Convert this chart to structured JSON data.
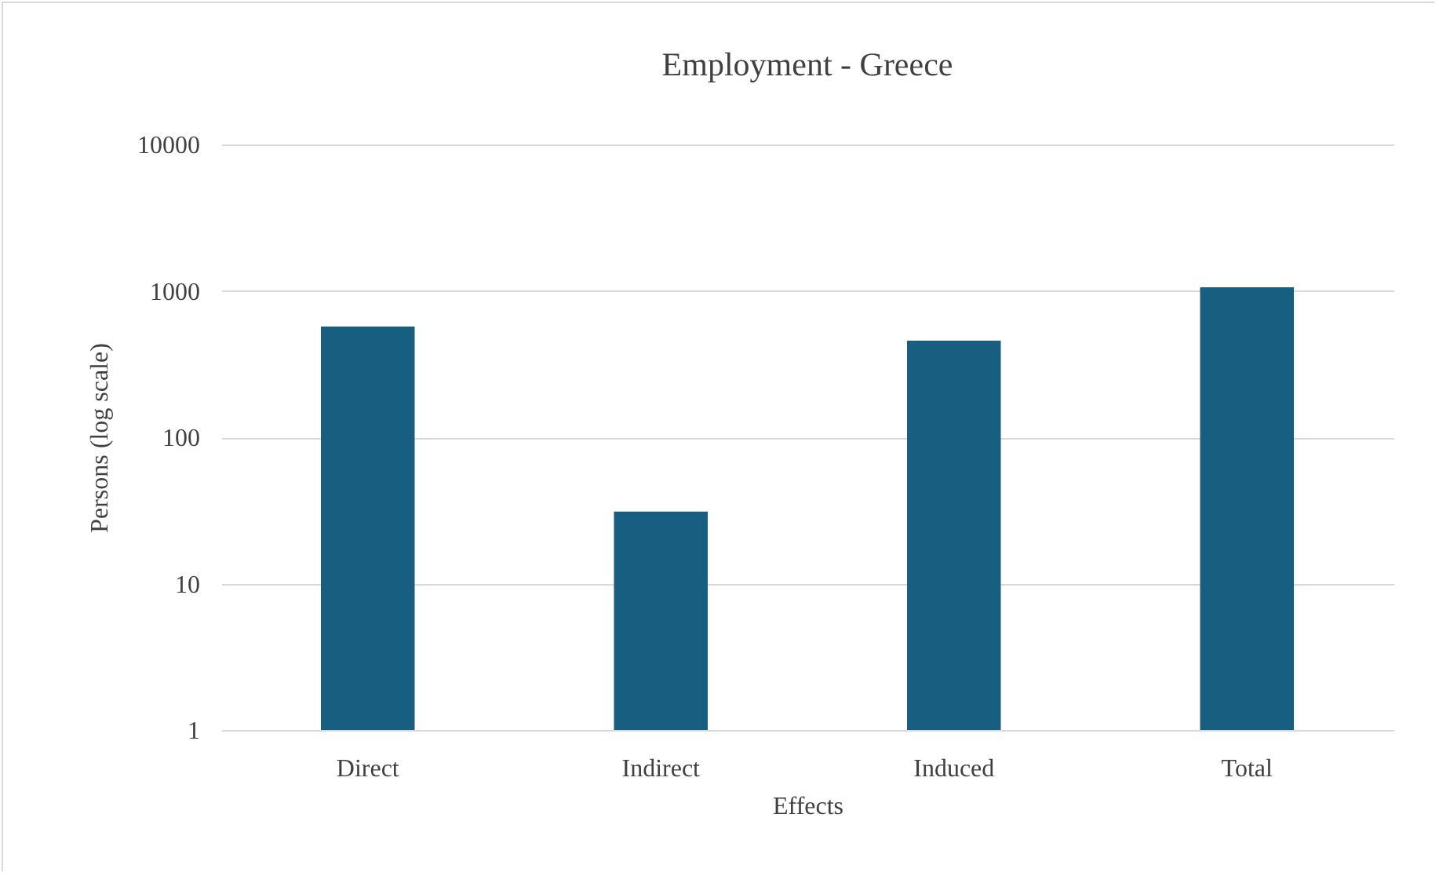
{
  "chart_data": {
    "type": "bar",
    "title": "Employment - Greece",
    "xlabel": "Effects",
    "ylabel": "Persons (log scale)",
    "categories": [
      "Direct",
      "Indirect",
      "Induced",
      "Total"
    ],
    "values": [
      570,
      31,
      456,
      1058
    ],
    "color": "#175e80",
    "log": true,
    "ylim": [
      1,
      10000
    ],
    "yticks": [
      1,
      10,
      100,
      1000,
      10000
    ],
    "grid": "y"
  }
}
